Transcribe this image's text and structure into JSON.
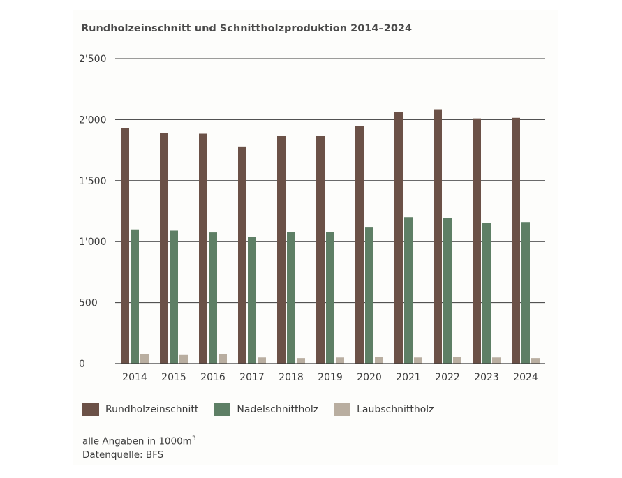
{
  "colors": {
    "rundholz": "#6b5147",
    "nadel": "#5e7f65",
    "laub": "#b9aea0",
    "grid": "#3a3a3a"
  },
  "notes": {
    "unit_prefix": "alle Angaben in 1000m",
    "unit_sup": "3",
    "source": "Datenquelle: BFS"
  },
  "chart_data": {
    "type": "bar",
    "title": "Rundholzeinschnitt und Schnittholzproduktion 2014–2024",
    "xlabel": "",
    "ylabel": "",
    "ylim": [
      0,
      2500
    ],
    "yticks": [
      0,
      500,
      1000,
      1500,
      2000,
      2500
    ],
    "ytick_labels": [
      "0",
      "500",
      "1'000",
      "1'500",
      "2'000",
      "2'500"
    ],
    "grid": true,
    "legend_position": "bottom",
    "categories": [
      "2014",
      "2015",
      "2016",
      "2017",
      "2018",
      "2019",
      "2020",
      "2021",
      "2022",
      "2023",
      "2024"
    ],
    "series": [
      {
        "name": "Rundholzeinschnitt",
        "values": [
          1930,
          1890,
          1885,
          1780,
          1865,
          1865,
          1950,
          2065,
          2085,
          2010,
          2015
        ]
      },
      {
        "name": "Nadelschnittholz",
        "values": [
          1100,
          1090,
          1075,
          1040,
          1080,
          1080,
          1115,
          1200,
          1195,
          1155,
          1160
        ]
      },
      {
        "name": "Laubschnittholz",
        "values": [
          75,
          70,
          75,
          50,
          45,
          50,
          55,
          50,
          55,
          50,
          45
        ]
      }
    ]
  }
}
